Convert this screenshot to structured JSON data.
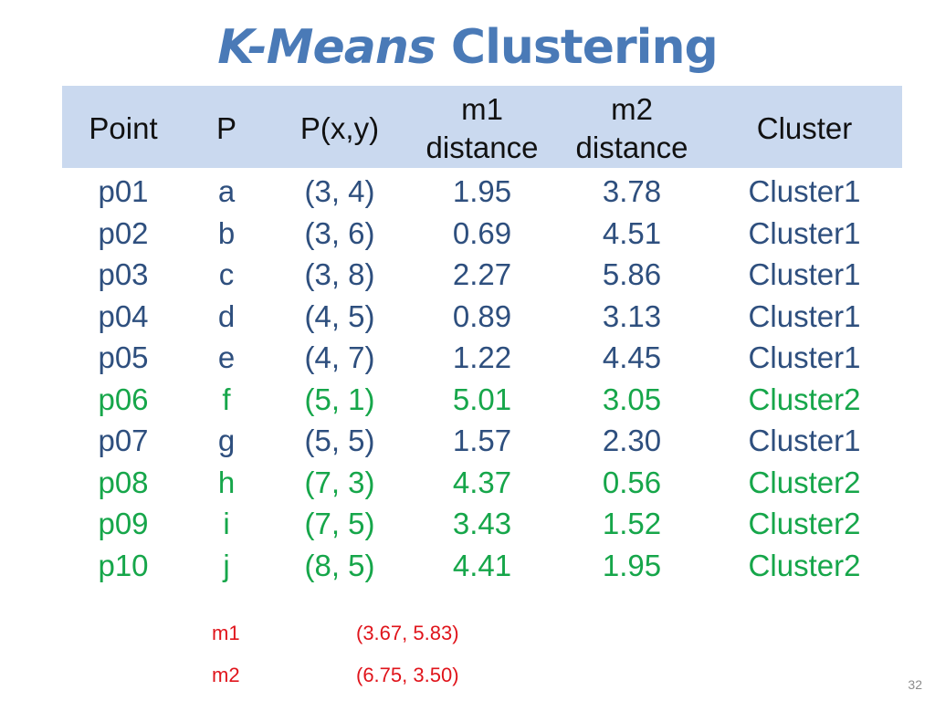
{
  "title": {
    "italic": "K-Means",
    "plain": "Clustering"
  },
  "table": {
    "headers": {
      "point": "Point",
      "p": "P",
      "pxy": "P(x,y)",
      "m1_line1": "m1",
      "m1_line2": "distance",
      "m2_line1": "m2",
      "m2_line2": "distance",
      "cluster": "Cluster"
    },
    "rows": [
      {
        "point": "p01",
        "p": "a",
        "pxy": "(3, 4)",
        "m1": "1.95",
        "m2": "3.78",
        "cluster": "Cluster1"
      },
      {
        "point": "p02",
        "p": "b",
        "pxy": "(3, 6)",
        "m1": "0.69",
        "m2": "4.51",
        "cluster": "Cluster1"
      },
      {
        "point": "p03",
        "p": "c",
        "pxy": "(3, 8)",
        "m1": "2.27",
        "m2": "5.86",
        "cluster": "Cluster1"
      },
      {
        "point": "p04",
        "p": "d",
        "pxy": "(4, 5)",
        "m1": "0.89",
        "m2": "3.13",
        "cluster": "Cluster1"
      },
      {
        "point": "p05",
        "p": "e",
        "pxy": "(4, 7)",
        "m1": "1.22",
        "m2": "4.45",
        "cluster": "Cluster1"
      },
      {
        "point": "p06",
        "p": "f",
        "pxy": "(5, 1)",
        "m1": "5.01",
        "m2": "3.05",
        "cluster": "Cluster2"
      },
      {
        "point": "p07",
        "p": "g",
        "pxy": "(5, 5)",
        "m1": "1.57",
        "m2": "2.30",
        "cluster": "Cluster1"
      },
      {
        "point": "p08",
        "p": "h",
        "pxy": "(7, 3)",
        "m1": "4.37",
        "m2": "0.56",
        "cluster": "Cluster2"
      },
      {
        "point": "p09",
        "p": "i",
        "pxy": "(7, 5)",
        "m1": "3.43",
        "m2": "1.52",
        "cluster": "Cluster2"
      },
      {
        "point": "p10",
        "p": "j",
        "pxy": "(8, 5)",
        "m1": "4.41",
        "m2": "1.95",
        "cluster": "Cluster2"
      }
    ]
  },
  "means": [
    {
      "label": "m1",
      "value": "(3.67, 5.83)"
    },
    {
      "label": "m2",
      "value": "(6.75, 3.50)"
    }
  ],
  "colors": {
    "title": "#4a7ab7",
    "header_band": "#cad9ef",
    "cluster1_text": "#2e4f7e",
    "cluster2_text": "#16a64a",
    "means_text": "#e0141b"
  },
  "page_number": "32"
}
